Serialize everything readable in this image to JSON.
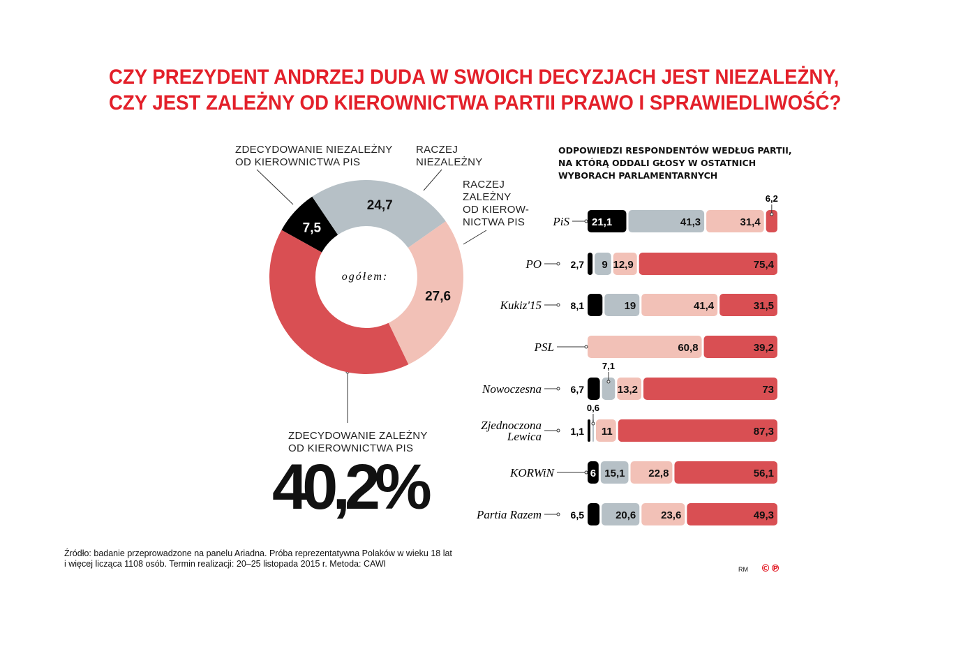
{
  "title": [
    "CZY PREZYDENT ANDRZEJ DUDA W SWOICH DECYZJACH JEST NIEZALEŻNY,",
    "CZY JEST ZALEŻNY OD KIEROWNICTWA PARTII PRAWO I SPRAWIEDLIWOŚĆ?"
  ],
  "colors": {
    "title": "#e3202a",
    "zdecydowanie_niezalezny": "#000000",
    "raczej_niezalezny": "#b6c0c6",
    "raczej_zalezny": "#f2c1b7",
    "zdecydowanie_zalezny": "#d94f53"
  },
  "chart_data": [
    {
      "type": "pie",
      "subtype": "donut",
      "center_label": "ogółem:",
      "slices": [
        {
          "name": "ZDECYDOWANIE NIEZALEŻNY\nOD KIEROWNICTWA PIS",
          "value": 7.5,
          "label": "7,5",
          "color": "#000000"
        },
        {
          "name": "RACZEJ\nNIEZALEŻNY",
          "value": 24.7,
          "label": "24,7",
          "color": "#b6c0c6"
        },
        {
          "name": "RACZEJ\nZALEŻNY\nOD KIEROW-\nNICTWA PIS",
          "value": 27.6,
          "label": "27,6",
          "color": "#f2c1b7"
        },
        {
          "name": "ZDECYDOWANIE ZALEŻNY\nOD KIEROWNICTWA PIS",
          "value": 40.2,
          "label": "40,2%",
          "color": "#d94f53"
        }
      ]
    },
    {
      "type": "bar",
      "orientation": "horizontal",
      "stacked": true,
      "title": "ODPOWIEDZI RESPONDENTÓW WEDŁUG PARTII,\nNA KTÓRĄ ODDALI GŁOSY W OSTATNICH\nWYBORACH PARLAMENTARNYCH",
      "categories": [
        "PiS",
        "PO",
        "Kukiz'15",
        "PSL",
        "Nowoczesna",
        "Zjednoczona\nLewica",
        "KORWiN",
        "Partia Razem"
      ],
      "series_colors": [
        "#000000",
        "#b6c0c6",
        "#f2c1b7",
        "#d94f53"
      ],
      "rows": [
        {
          "values": [
            21.1,
            41.3,
            31.4,
            6.2
          ],
          "labels": [
            "21,1",
            "41,3",
            "31,4",
            "6,2"
          ]
        },
        {
          "values": [
            2.7,
            9,
            12.9,
            75.4
          ],
          "labels": [
            "2,7",
            "9",
            "12,9",
            "75,4"
          ]
        },
        {
          "values": [
            8.1,
            19,
            41.4,
            31.5
          ],
          "labels": [
            "8,1",
            "19",
            "41,4",
            "31,5"
          ]
        },
        {
          "values": [
            0,
            0,
            60.8,
            39.2
          ],
          "labels": [
            "",
            "",
            "60,8",
            "39,2"
          ]
        },
        {
          "values": [
            6.7,
            7.1,
            13.2,
            73
          ],
          "labels": [
            "6,7",
            "7,1",
            "13,2",
            "73"
          ]
        },
        {
          "values": [
            1.1,
            0.6,
            11,
            87.3
          ],
          "labels": [
            "1,1",
            "0,6",
            "11",
            "87,3"
          ]
        },
        {
          "values": [
            6,
            15.1,
            22.8,
            56.1
          ],
          "labels": [
            "6",
            "15,1",
            "22,8",
            "56,1"
          ]
        },
        {
          "values": [
            6.5,
            20.6,
            23.6,
            49.3
          ],
          "labels": [
            "6,5",
            "20,6",
            "23,6",
            "49,3"
          ]
        }
      ]
    }
  ],
  "footer": {
    "source": "Źródło: badanie przeprowadzone na panelu Ariadna. Próba reprezentatywna Polaków w wieku 18 lat\ni więcej licząca 1108 osób. Termin realizacji: 20–25 listopada 2015 r. Metoda: CAWI",
    "author": "RM",
    "logo": "©℗"
  }
}
